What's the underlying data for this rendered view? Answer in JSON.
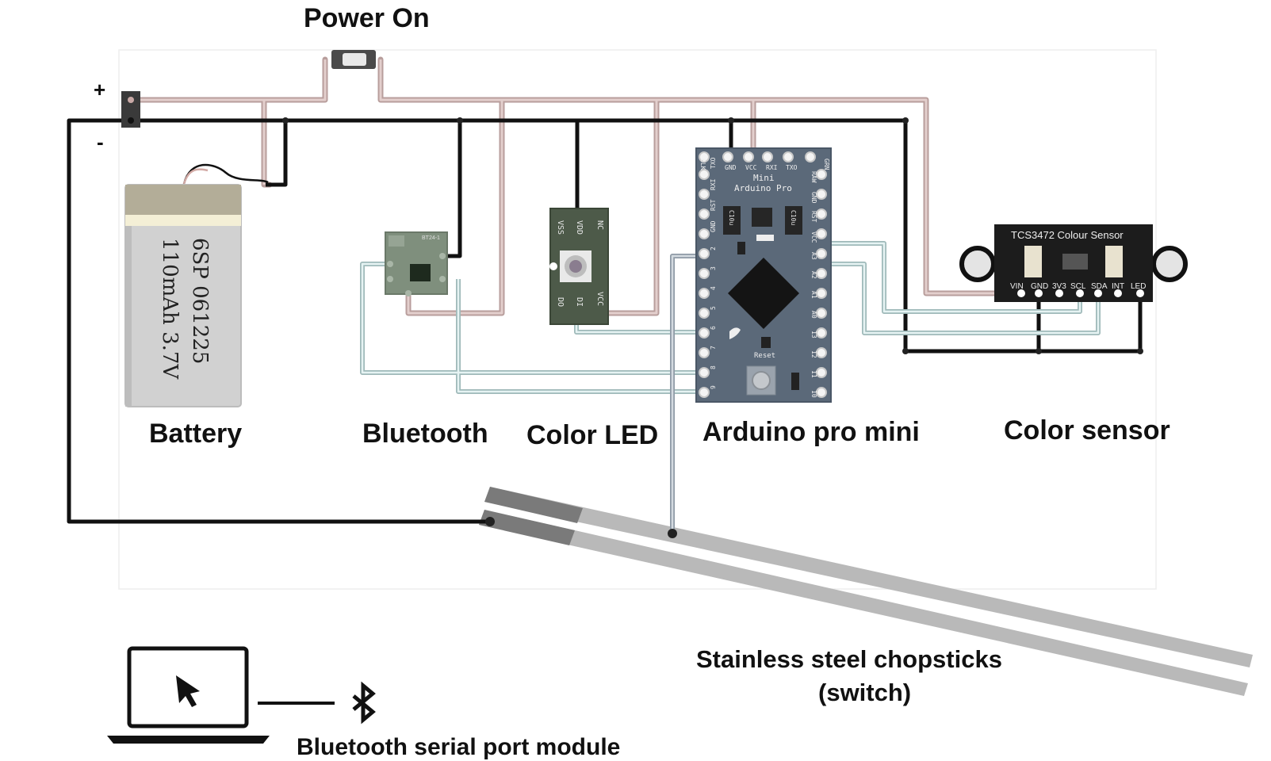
{
  "labels": {
    "power_on": "Power On",
    "plus": "+",
    "minus": "-",
    "battery": "Battery",
    "bluetooth": "Bluetooth",
    "color_led": "Color LED",
    "arduino": "Arduino pro mini",
    "color_sensor": "Color sensor",
    "chopsticks_line1": "Stainless steel  chopsticks",
    "chopsticks_line2": "(switch)",
    "bt_serial": "Bluetooth serial port module"
  },
  "battery": {
    "line1": "6SP 061225",
    "line2": "110mAh 3.7V"
  },
  "bluetooth_module": {
    "chip_label": "BT24-1"
  },
  "color_led_module": {
    "pins_top": [
      "VSS",
      "VDD",
      "NC"
    ],
    "pins_bottom": [
      "DO",
      "DI",
      "VCC"
    ]
  },
  "arduino_board": {
    "title1": "Mini",
    "title2": "Arduino Pro",
    "top_pins": [
      "BLK",
      "GND",
      "VCC",
      "RXI",
      "TXO",
      "GRN"
    ],
    "left_pins": [
      "TXO",
      "RXI",
      "RST",
      "GND",
      "2",
      "3",
      "4",
      "5",
      "6",
      "7",
      "8",
      "9"
    ],
    "right_pins": [
      "RAW",
      "GND",
      "RST",
      "VCC",
      "A3",
      "A2",
      "A1",
      "A0",
      "13",
      "12",
      "11",
      "10"
    ],
    "cap_label": "C10u",
    "reset_label": "Reset"
  },
  "sensor_board": {
    "title": "TCS3472 Colour Sensor",
    "pins": [
      "VIN",
      "GND",
      "3V3",
      "SCL",
      "SDA",
      "INT",
      "LED"
    ]
  },
  "colors": {
    "wire_power": "#c9a9a6",
    "wire_ground": "#1a1a1a",
    "wire_signal": "#b8d4d4",
    "wire_chopstick": "#9aa5b0",
    "pcb_arduino": "#5a6878",
    "pcb_bluetooth": "#7d8c7b",
    "pcb_led": "#4e5a4a",
    "pcb_sensor": "#1c1c1c"
  },
  "icons": {
    "laptop": "laptop-icon",
    "cursor": "cursor-arrow-icon",
    "bluetooth": "bluetooth-icon"
  }
}
